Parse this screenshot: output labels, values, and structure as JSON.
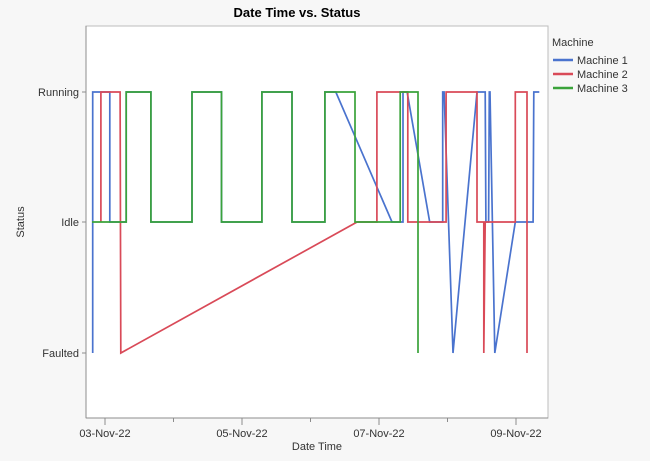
{
  "title": "Date Time vs. Status",
  "x_axis": {
    "title": "Date Time",
    "major_ticks": [
      {
        "label": "03-Nov-22",
        "day": 3
      },
      {
        "label": "05-Nov-22",
        "day": 5
      },
      {
        "label": "07-Nov-22",
        "day": 7
      },
      {
        "label": "09-Nov-22",
        "day": 9
      }
    ],
    "minor_tick_days": [
      4,
      6,
      8
    ]
  },
  "y_axis": {
    "title": "Status",
    "categories": [
      "Running",
      "Idle",
      "Faulted"
    ]
  },
  "legend": {
    "title": "Machine",
    "items": [
      {
        "label": "Machine 1",
        "color": "#4A73CE"
      },
      {
        "label": "Machine 2",
        "color": "#D94A58"
      },
      {
        "label": "Machine 3",
        "color": "#3AA33A"
      }
    ]
  },
  "chart_data": {
    "type": "line",
    "title": "Date Time vs. Status",
    "xlabel": "Date Time",
    "ylabel": "Status",
    "x_unit": "day of November 2022 (fractional days, ticks at 03/05/07/09-Nov-22)",
    "x_range": [
      2.72,
      9.47
    ],
    "status_levels": [
      "Faulted",
      "Idle",
      "Running"
    ],
    "grid": false,
    "legend_position": "right-top",
    "series": [
      {
        "name": "Machine 1",
        "color": "#4A73CE",
        "points": [
          [
            2.82,
            "Faulted"
          ],
          [
            2.82,
            "Running"
          ],
          [
            3.07,
            "Running"
          ],
          [
            3.07,
            "Idle"
          ],
          [
            3.31,
            "Idle"
          ],
          [
            3.31,
            "Running"
          ],
          [
            3.67,
            "Running"
          ],
          [
            3.67,
            "Idle"
          ],
          [
            4.27,
            "Idle"
          ],
          [
            4.27,
            "Running"
          ],
          [
            4.7,
            "Running"
          ],
          [
            4.7,
            "Idle"
          ],
          [
            5.29,
            "Idle"
          ],
          [
            5.29,
            "Running"
          ],
          [
            5.73,
            "Running"
          ],
          [
            5.73,
            "Idle"
          ],
          [
            6.21,
            "Idle"
          ],
          [
            6.21,
            "Running"
          ],
          [
            6.37,
            "Running"
          ],
          [
            7.19,
            "Idle"
          ],
          [
            7.35,
            "Idle"
          ],
          [
            7.35,
            "Running"
          ],
          [
            7.41,
            "Running"
          ],
          [
            7.74,
            "Idle"
          ],
          [
            7.93,
            "Idle"
          ],
          [
            7.93,
            "Running"
          ],
          [
            7.95,
            "Running"
          ],
          [
            8.08,
            "Faulted"
          ],
          [
            8.43,
            "Running"
          ],
          [
            8.55,
            "Running"
          ],
          [
            8.56,
            "Idle"
          ],
          [
            8.6,
            "Idle"
          ],
          [
            8.61,
            "Running"
          ],
          [
            8.62,
            "Running"
          ],
          [
            8.69,
            "Faulted"
          ],
          [
            8.99,
            "Idle"
          ],
          [
            9.25,
            "Idle"
          ],
          [
            9.26,
            "Running"
          ],
          [
            9.34,
            "Running"
          ]
        ]
      },
      {
        "name": "Machine 2",
        "color": "#D94A58",
        "points": [
          [
            2.94,
            "Idle"
          ],
          [
            2.94,
            "Running"
          ],
          [
            3.22,
            "Running"
          ],
          [
            3.23,
            "Faulted"
          ],
          [
            6.68,
            "Idle"
          ],
          [
            6.97,
            "Idle"
          ],
          [
            6.97,
            "Running"
          ],
          [
            7.42,
            "Running"
          ],
          [
            7.42,
            "Idle"
          ],
          [
            7.98,
            "Idle"
          ],
          [
            7.98,
            "Running"
          ],
          [
            8.43,
            "Running"
          ],
          [
            8.43,
            "Idle"
          ],
          [
            8.53,
            "Idle"
          ],
          [
            8.53,
            "Faulted"
          ],
          [
            8.55,
            "Idle"
          ],
          [
            8.99,
            "Idle"
          ],
          [
            8.99,
            "Running"
          ],
          [
            9.16,
            "Running"
          ],
          [
            9.16,
            "Faulted"
          ]
        ]
      },
      {
        "name": "Machine 3",
        "color": "#3AA33A",
        "points": [
          [
            2.81,
            "Idle"
          ],
          [
            3.31,
            "Idle"
          ],
          [
            3.31,
            "Running"
          ],
          [
            3.67,
            "Running"
          ],
          [
            3.67,
            "Idle"
          ],
          [
            4.27,
            "Idle"
          ],
          [
            4.27,
            "Running"
          ],
          [
            4.7,
            "Running"
          ],
          [
            4.7,
            "Idle"
          ],
          [
            5.29,
            "Idle"
          ],
          [
            5.29,
            "Running"
          ],
          [
            5.73,
            "Running"
          ],
          [
            5.73,
            "Idle"
          ],
          [
            6.21,
            "Idle"
          ],
          [
            6.21,
            "Running"
          ],
          [
            6.65,
            "Running"
          ],
          [
            6.65,
            "Idle"
          ],
          [
            7.31,
            "Idle"
          ],
          [
            7.31,
            "Running"
          ],
          [
            7.57,
            "Running"
          ],
          [
            7.57,
            "Faulted"
          ]
        ]
      }
    ]
  }
}
